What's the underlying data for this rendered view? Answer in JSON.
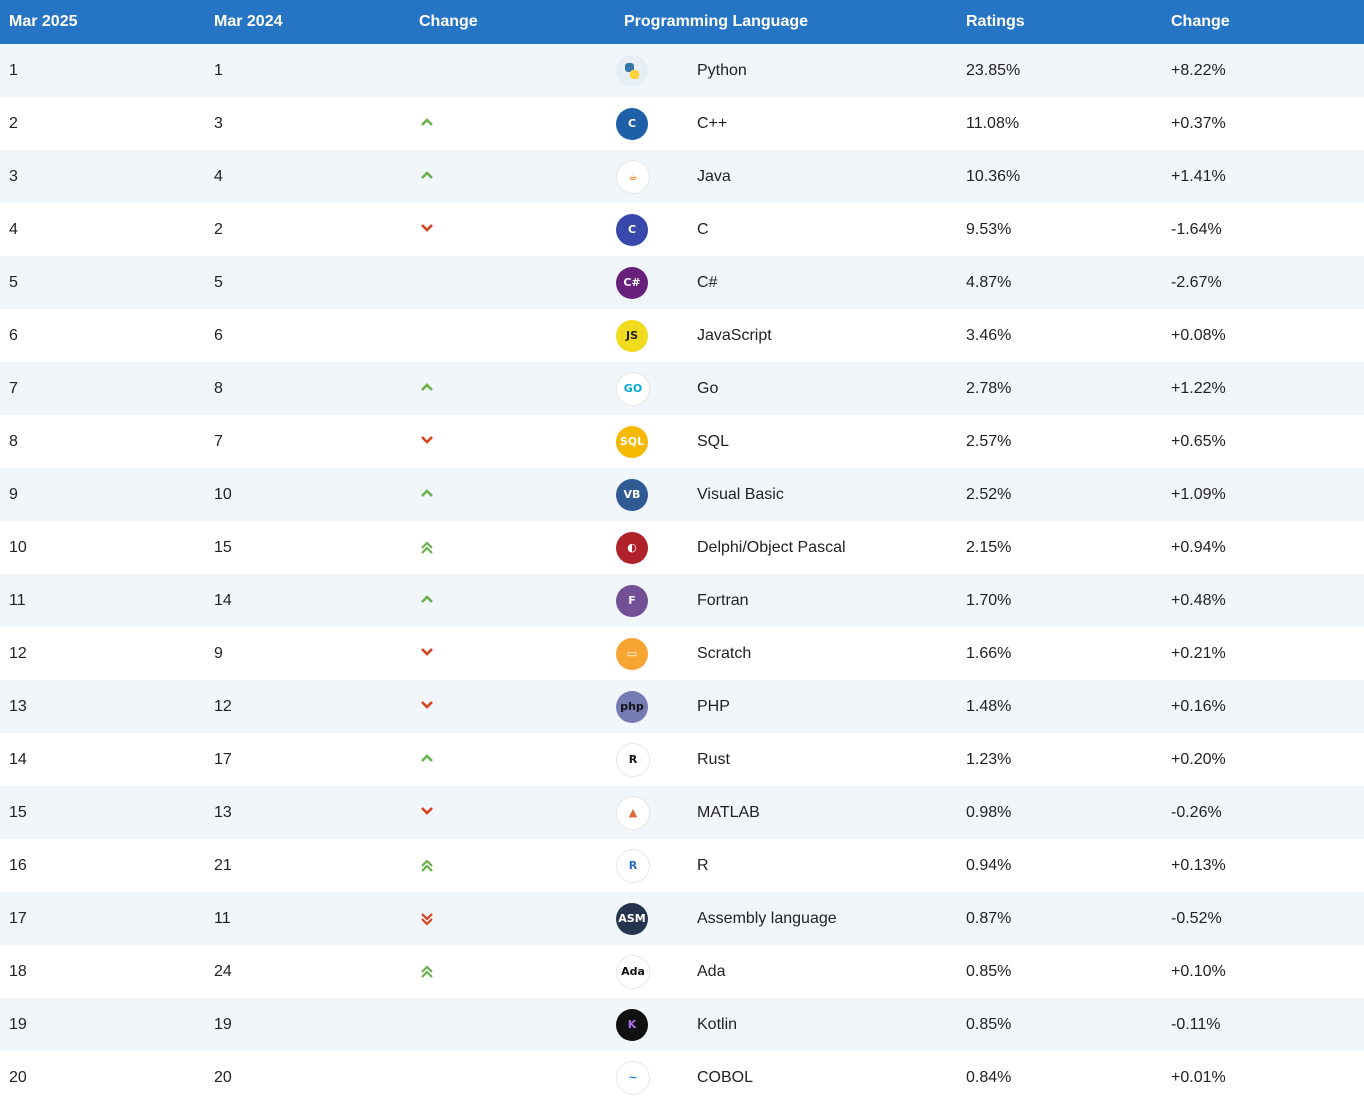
{
  "header": {
    "mar2025": "Mar 2025",
    "mar2024": "Mar 2024",
    "change": "Change",
    "language": "Programming Language",
    "ratings": "Ratings",
    "change2": "Change"
  },
  "rows": [
    {
      "rank2025": "1",
      "rank2024": "1",
      "trend": "none",
      "lang": "Python",
      "logo": "python-icon",
      "logo_text": "",
      "logo_bg": "#e8eef5",
      "logo_fg": "#3776ab",
      "rating": "23.85%",
      "change": "+8.22%"
    },
    {
      "rank2025": "2",
      "rank2024": "3",
      "trend": "up",
      "lang": "C++",
      "logo": "cpp-icon",
      "logo_text": "C",
      "logo_bg": "#1f5fa8",
      "logo_fg": "#ffffff",
      "rating": "11.08%",
      "change": "+0.37%"
    },
    {
      "rank2025": "3",
      "rank2024": "4",
      "trend": "up",
      "lang": "Java",
      "logo": "java-icon",
      "logo_text": "☕",
      "logo_bg": "#ffffff",
      "logo_fg": "#e76f00",
      "rating": "10.36%",
      "change": "+1.41%"
    },
    {
      "rank2025": "4",
      "rank2024": "2",
      "trend": "down",
      "lang": "C",
      "logo": "c-icon",
      "logo_text": "C",
      "logo_bg": "#3949ab",
      "logo_fg": "#ffffff",
      "rating": "9.53%",
      "change": "-1.64%"
    },
    {
      "rank2025": "5",
      "rank2024": "5",
      "trend": "none",
      "lang": "C#",
      "logo": "csharp-icon",
      "logo_text": "C#",
      "logo_bg": "#68217a",
      "logo_fg": "#ffffff",
      "rating": "4.87%",
      "change": "-2.67%"
    },
    {
      "rank2025": "6",
      "rank2024": "6",
      "trend": "none",
      "lang": "JavaScript",
      "logo": "javascript-icon",
      "logo_text": "JS",
      "logo_bg": "#f0db1c",
      "logo_fg": "#222222",
      "rating": "3.46%",
      "change": "+0.08%"
    },
    {
      "rank2025": "7",
      "rank2024": "8",
      "trend": "up",
      "lang": "Go",
      "logo": "go-icon",
      "logo_text": "GO",
      "logo_bg": "#ffffff",
      "logo_fg": "#00acd7",
      "rating": "2.78%",
      "change": "+1.22%"
    },
    {
      "rank2025": "8",
      "rank2024": "7",
      "trend": "down",
      "lang": "SQL",
      "logo": "sql-icon",
      "logo_text": "SQL",
      "logo_bg": "#f6b800",
      "logo_fg": "#ffffff",
      "rating": "2.57%",
      "change": "+0.65%"
    },
    {
      "rank2025": "9",
      "rank2024": "10",
      "trend": "up",
      "lang": "Visual Basic",
      "logo": "visual-basic-icon",
      "logo_text": "VB",
      "logo_bg": "#2f5a94",
      "logo_fg": "#ffffff",
      "rating": "2.52%",
      "change": "+1.09%"
    },
    {
      "rank2025": "10",
      "rank2024": "15",
      "trend": "up2",
      "lang": "Delphi/Object Pascal",
      "logo": "delphi-icon",
      "logo_text": "◐",
      "logo_bg": "#b0222a",
      "logo_fg": "#ffffff",
      "rating": "2.15%",
      "change": "+0.94%"
    },
    {
      "rank2025": "11",
      "rank2024": "14",
      "trend": "up",
      "lang": "Fortran",
      "logo": "fortran-icon",
      "logo_text": "F",
      "logo_bg": "#734f96",
      "logo_fg": "#ffffff",
      "rating": "1.70%",
      "change": "+0.48%"
    },
    {
      "rank2025": "12",
      "rank2024": "9",
      "trend": "down",
      "lang": "Scratch",
      "logo": "scratch-icon",
      "logo_text": "▭",
      "logo_bg": "#f7a530",
      "logo_fg": "#ffffff",
      "rating": "1.66%",
      "change": "+0.21%"
    },
    {
      "rank2025": "13",
      "rank2024": "12",
      "trend": "down",
      "lang": "PHP",
      "logo": "php-icon",
      "logo_text": "php",
      "logo_bg": "#777bb3",
      "logo_fg": "#111111",
      "rating": "1.48%",
      "change": "+0.16%"
    },
    {
      "rank2025": "14",
      "rank2024": "17",
      "trend": "up",
      "lang": "Rust",
      "logo": "rust-icon",
      "logo_text": "R",
      "logo_bg": "#ffffff",
      "logo_fg": "#111111",
      "rating": "1.23%",
      "change": "+0.20%"
    },
    {
      "rank2025": "15",
      "rank2024": "13",
      "trend": "down",
      "lang": "MATLAB",
      "logo": "matlab-icon",
      "logo_text": "▲",
      "logo_bg": "#ffffff",
      "logo_fg": "#e16737",
      "rating": "0.98%",
      "change": "-0.26%"
    },
    {
      "rank2025": "16",
      "rank2024": "21",
      "trend": "up2",
      "lang": "R",
      "logo": "r-icon",
      "logo_text": "R",
      "logo_bg": "#ffffff",
      "logo_fg": "#276dc3",
      "rating": "0.94%",
      "change": "+0.13%"
    },
    {
      "rank2025": "17",
      "rank2024": "11",
      "trend": "down2",
      "lang": "Assembly language",
      "logo": "assembly-icon",
      "logo_text": "ASM",
      "logo_bg": "#26354d",
      "logo_fg": "#ffffff",
      "rating": "0.87%",
      "change": "-0.52%"
    },
    {
      "rank2025": "18",
      "rank2024": "24",
      "trend": "up2",
      "lang": "Ada",
      "logo": "ada-icon",
      "logo_text": "Ada",
      "logo_bg": "#ffffff",
      "logo_fg": "#111111",
      "rating": "0.85%",
      "change": "+0.10%"
    },
    {
      "rank2025": "19",
      "rank2024": "19",
      "trend": "none",
      "lang": "Kotlin",
      "logo": "kotlin-icon",
      "logo_text": "K",
      "logo_bg": "#111111",
      "logo_fg": "#b36cf2",
      "rating": "0.85%",
      "change": "-0.11%"
    },
    {
      "rank2025": "20",
      "rank2024": "20",
      "trend": "none",
      "lang": "COBOL",
      "logo": "cobol-icon",
      "logo_text": "~",
      "logo_bg": "#ffffff",
      "logo_fg": "#1f7fc9",
      "rating": "0.84%",
      "change": "+0.01%"
    }
  ],
  "colors": {
    "header_bg": "#2675c4",
    "up": "#6ab04c",
    "down": "#d9431c",
    "row_alt": "#f1f6fa"
  }
}
